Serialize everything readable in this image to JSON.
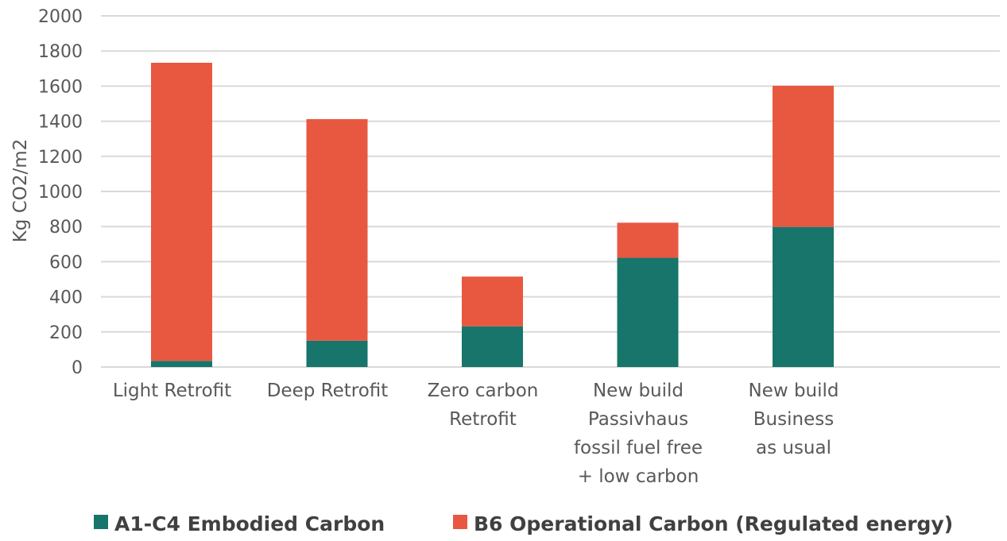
{
  "chart_data": {
    "type": "bar",
    "stacked": true,
    "categories": [
      [
        "Light Retrofit"
      ],
      [
        "Deep Retrofit"
      ],
      [
        "Zero carbon",
        "Retrofit"
      ],
      [
        "New build",
        "Passivhaus",
        "fossil fuel free",
        "+ low carbon"
      ],
      [
        "New build",
        "Business",
        "as usual"
      ]
    ],
    "series": [
      {
        "name": "A1-C4 Embodied Carbon",
        "color": "#17756b",
        "values": [
          35,
          150,
          232,
          622,
          798
        ]
      },
      {
        "name": "B6 Operational Carbon (Regulated energy)",
        "color": "#e85840",
        "values": [
          1698,
          1262,
          283,
          200,
          804
        ]
      }
    ],
    "ylabel": "Kg CO2/m2",
    "xlabel": "",
    "ylim": [
      0,
      2000
    ],
    "yticks": [
      0,
      200,
      400,
      600,
      800,
      1000,
      1200,
      1400,
      1600,
      1800,
      2000
    ],
    "grid": true,
    "legend": "bottom"
  }
}
